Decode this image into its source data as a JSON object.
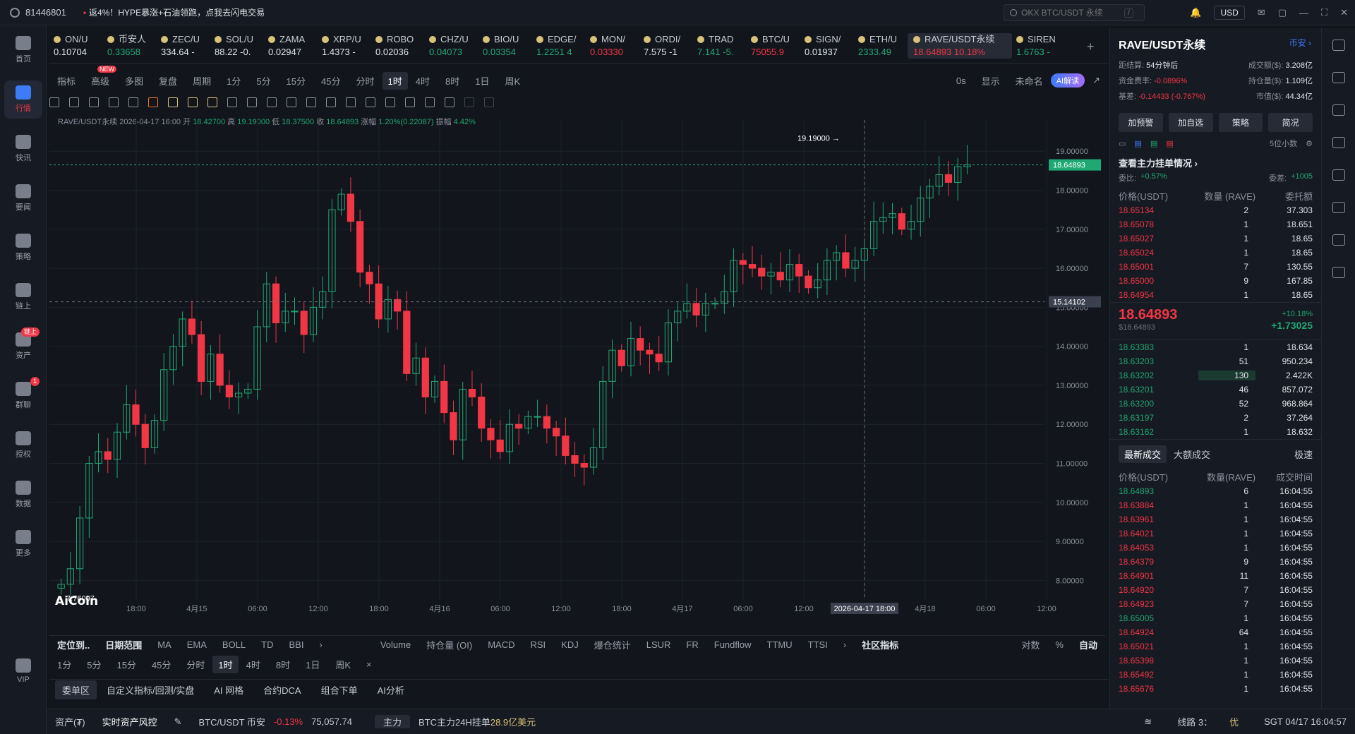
{
  "topbar": {
    "uid": "81446801",
    "promo_mark": "•",
    "promo": "返4%！HYPE暴涨+石油领跑，点我去闪电交易",
    "search_placeholder": "OKX BTC/USDT 永续",
    "search_shortcut": "/",
    "currency": "USD"
  },
  "sidebar": [
    {
      "label": "首页",
      "icon": "home-icon"
    },
    {
      "label": "行情",
      "icon": "chart-icon",
      "active": true
    },
    {
      "label": "快讯",
      "icon": "news-icon"
    },
    {
      "label": "要闻",
      "icon": "doc-icon"
    },
    {
      "label": "策略",
      "icon": "robot-icon"
    },
    {
      "label": "链上",
      "icon": "chain-icon"
    },
    {
      "label": "资产",
      "icon": "wallet-icon",
      "badge": "链上"
    },
    {
      "label": "群聊",
      "icon": "chat-icon",
      "badge": "1"
    },
    {
      "label": "授权",
      "icon": "key-icon"
    },
    {
      "label": "数据",
      "icon": "data-icon"
    },
    {
      "label": "更多",
      "icon": "grid-icon"
    },
    {
      "label": "VIP",
      "icon": "vip-icon"
    }
  ],
  "tickers": [
    {
      "name": "ON/U",
      "price": "0.10704",
      "dir": "neutral"
    },
    {
      "name": "币安人",
      "price": "0.33658",
      "dir": "up"
    },
    {
      "name": "ZEC/U",
      "price": "334.64 -",
      "dir": "neutral"
    },
    {
      "name": "SOL/U",
      "price": "88.22 -0.",
      "dir": "neutral"
    },
    {
      "name": "ZAMA",
      "price": "0.02947",
      "dir": "neutral"
    },
    {
      "name": "XRP/U",
      "price": "1.4373 -",
      "dir": "neutral"
    },
    {
      "name": "ROBO",
      "price": "0.02036",
      "dir": "neutral"
    },
    {
      "name": "CHZ/U",
      "price": "0.04073",
      "dir": "up"
    },
    {
      "name": "BIO/U",
      "price": "0.03354",
      "dir": "up"
    },
    {
      "name": "EDGE/",
      "price": "1.2251 4",
      "dir": "up"
    },
    {
      "name": "MON/",
      "price": "0.03330",
      "dir": "down"
    },
    {
      "name": "ORDI/",
      "price": "7.575 -1",
      "dir": "neutral"
    },
    {
      "name": "TRAD",
      "price": "7.141 -5.",
      "dir": "up"
    },
    {
      "name": "BTC/U",
      "price": "75055.9",
      "dir": "down"
    },
    {
      "name": "SIGN/",
      "price": "0.01937",
      "dir": "neutral"
    },
    {
      "name": "ETH/U",
      "price": "2333.49",
      "dir": "up"
    },
    {
      "name": "RAVE/USDT永续",
      "price": "18.64893 10.18%",
      "dir": "down",
      "active": true
    },
    {
      "name": "SIREN",
      "price": "1.6763 -",
      "dir": "up"
    }
  ],
  "toolbar1": {
    "items": [
      "指标",
      "高级",
      "多图",
      "复盘",
      "周期",
      "1分",
      "5分",
      "15分",
      "45分",
      "分时",
      "1时",
      "4时",
      "8时",
      "1日",
      "周K"
    ],
    "selected": "1时",
    "new_badge": "NEW",
    "right": [
      "0s",
      "显示",
      "未命名"
    ],
    "ai": "AI解读"
  },
  "ohlc": {
    "symbol": "RAVE/USDT永续",
    "time": "2026-04-17 16:00",
    "open_label": "开",
    "open": "18.42700",
    "high_label": "高",
    "high": "19.19000",
    "low_label": "低",
    "low": "18.37500",
    "close_label": "收",
    "close": "18.64893",
    "chg_label": "涨幅",
    "chg": "1.20%(0.22087)",
    "amp_label": "振幅",
    "amp": "4.42%"
  },
  "chart_data": {
    "type": "candlestick",
    "symbol": "RAVE/USDT永续",
    "interval": "1时",
    "ylim": [
      7.5,
      19.8
    ],
    "y_ticks": [
      "8.00000",
      "9.00000",
      "10.00000",
      "11.00000",
      "12.00000",
      "13.00000",
      "14.00000",
      "15.00000",
      "16.00000",
      "17.00000",
      "18.00000",
      "19.00000"
    ],
    "x_ticks": [
      "18:00",
      "4月15",
      "06:00",
      "12:00",
      "18:00",
      "4月16",
      "06:00",
      "12:00",
      "18:00",
      "4月17",
      "06:00",
      "12:00",
      "2026-04-17 18:00",
      "4月18",
      "06:00",
      "12:00"
    ],
    "high_marker": "19.19000 →",
    "low_marker": "← 7.76007",
    "last_price_label": "18.64893",
    "crosshair_price": "15.14102",
    "crosshair_time": "2026-04-17 18:00",
    "closes": [
      7.9,
      8.3,
      9.6,
      11.0,
      11.3,
      11.1,
      11.8,
      12.5,
      12.0,
      11.4,
      12.1,
      13.4,
      14.0,
      14.7,
      14.3,
      13.1,
      13.8,
      13.0,
      12.7,
      12.8,
      12.9,
      14.5,
      15.6,
      14.6,
      14.9,
      14.9,
      14.3,
      15.0,
      15.4,
      17.5,
      17.9,
      17.2,
      15.9,
      15.6,
      14.7,
      15.2,
      14.9,
      13.3,
      13.7,
      12.7,
      13.1,
      12.3,
      11.6,
      12.9,
      12.7,
      11.9,
      11.6,
      11.3,
      12.0,
      11.9,
      12.2,
      12.2,
      11.9,
      11.7,
      11.2,
      11.0,
      10.9,
      11.4,
      13.1,
      13.9,
      13.5,
      14.2,
      13.9,
      13.8,
      13.6,
      14.6,
      14.9,
      15.1,
      14.8,
      15.1,
      15.1,
      15.4,
      16.2,
      16.1,
      16.0,
      15.8,
      15.9,
      15.7,
      16.1,
      15.8,
      15.5,
      15.7,
      16.2,
      16.4,
      16.0,
      16.2,
      16.5,
      17.2,
      17.3,
      17.4,
      17.0,
      17.2,
      17.8,
      18.1,
      18.4,
      18.2,
      18.6,
      18.65
    ]
  },
  "toolbar3": {
    "items": [
      "定位到..",
      "日期范围",
      "MA",
      "EMA",
      "BOLL",
      "TD",
      "BBI",
      "›",
      "Volume",
      "持仓量 (OI)",
      "MACD",
      "RSI",
      "KDJ",
      "爆仓统计",
      "LSUR",
      "FR",
      "Fundflow",
      "TTMU",
      "TTSI",
      "›",
      "社区指标",
      "对数",
      "%",
      "自动"
    ]
  },
  "toolbar4": {
    "items": [
      "1分",
      "5分",
      "15分",
      "45分",
      "分时",
      "1时",
      "4时",
      "8时",
      "1日",
      "周K",
      "×"
    ],
    "selected": "1时"
  },
  "bottom_tabs": {
    "items": [
      "委单区",
      "自定义指标/回测/实盘",
      "AI 网格",
      "合约DCA",
      "组合下单",
      "AI分析"
    ],
    "selected": "委单区"
  },
  "statusbar": {
    "asset": "资产(₮)",
    "risk": "实时资产风控",
    "pair": "BTC/USDT 币安",
    "pair_chg": "-0.13%",
    "pair_price": "75,057.74",
    "main_label": "主力",
    "main_text": "BTC主力24H挂单",
    "main_val": "28.9亿美元",
    "line": "线路 3：",
    "line_q": "优",
    "time": "SGT 04/17 16:04:57"
  },
  "panel": {
    "title": "RAVE/USDT永续",
    "exchange": "币安 ›",
    "stats": [
      [
        "距结算:",
        "54分钟后",
        "成交额($):",
        "3.208亿"
      ],
      [
        "资金费率:",
        "-0.0896%",
        "持仓量($):",
        "1.109亿"
      ],
      [
        "基差:",
        "-0.14433 (-0.767%)",
        "市值($):",
        "44.34亿"
      ]
    ],
    "buttons": [
      "加预警",
      "加自选",
      "策略",
      "简况"
    ],
    "decimals": "5位小数",
    "depth_title": "查看主力挂单情况 ›",
    "bid_ratio_label": "委比:",
    "bid_ratio": "+0.57%",
    "bid_diff_label": "委差:",
    "bid_diff": "+1005",
    "ob_headers": [
      "价格(USDT)",
      "数量 (RAVE)",
      "委托额"
    ],
    "asks": [
      [
        "18.65134",
        "2",
        "37.303"
      ],
      [
        "18.65078",
        "1",
        "18.651"
      ],
      [
        "18.65027",
        "1",
        "18.65"
      ],
      [
        "18.65024",
        "1",
        "18.65"
      ],
      [
        "18.65001",
        "7",
        "130.55"
      ],
      [
        "18.65000",
        "9",
        "167.85"
      ],
      [
        "18.64954",
        "1",
        "18.65"
      ]
    ],
    "mid": "18.64893",
    "mid_sub": "$18.64893",
    "mid_pct": "+10.18%",
    "mid_chg": "+1.73025",
    "bids": [
      [
        "18.63383",
        "1",
        "18.634"
      ],
      [
        "18.63203",
        "51",
        "950.234"
      ],
      [
        "18.63202",
        "130",
        "2.422K"
      ],
      [
        "18.63201",
        "46",
        "857.072"
      ],
      [
        "18.63200",
        "52",
        "968.864"
      ],
      [
        "18.63197",
        "2",
        "37.264"
      ],
      [
        "18.63162",
        "1",
        "18.632"
      ]
    ],
    "trade_tabs": [
      "最新成交",
      "大额成交",
      "极速"
    ],
    "tr_headers": [
      "价格(USDT)",
      "数量(RAVE)",
      "成交时间"
    ],
    "trades": [
      [
        "18.64893",
        "6",
        "16:04:55",
        "up"
      ],
      [
        "18.63884",
        "1",
        "16:04:55",
        "down"
      ],
      [
        "18.63961",
        "1",
        "16:04:55",
        "down"
      ],
      [
        "18.64021",
        "1",
        "16:04:55",
        "down"
      ],
      [
        "18.64053",
        "1",
        "16:04:55",
        "down"
      ],
      [
        "18.64379",
        "9",
        "16:04:55",
        "down"
      ],
      [
        "18.64901",
        "11",
        "16:04:55",
        "down"
      ],
      [
        "18.64920",
        "7",
        "16:04:55",
        "down"
      ],
      [
        "18.64923",
        "7",
        "16:04:55",
        "down"
      ],
      [
        "18.65005",
        "1",
        "16:04:55",
        "up"
      ],
      [
        "18.64924",
        "64",
        "16:04:55",
        "down"
      ],
      [
        "18.65021",
        "1",
        "16:04:55",
        "down"
      ],
      [
        "18.65398",
        "1",
        "16:04:55",
        "down"
      ],
      [
        "18.65492",
        "1",
        "16:04:55",
        "down"
      ],
      [
        "18.65676",
        "1",
        "16:04:55",
        "down"
      ]
    ]
  },
  "watermark": "AiCoin"
}
